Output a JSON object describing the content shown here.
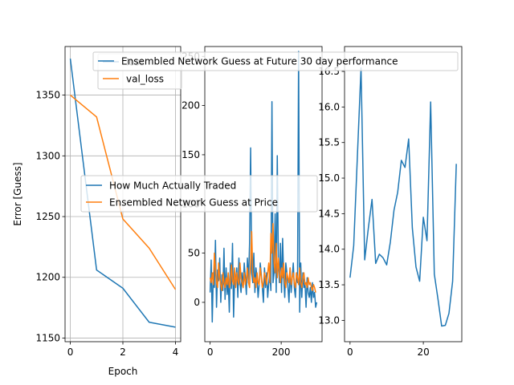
{
  "colors": {
    "blue": "#1f77b4",
    "orange": "#ff7f0e",
    "grid": "#b0b0b0"
  },
  "chart_data": [
    {
      "type": "line",
      "xlabel": "Epoch",
      "ylabel": "Error [Guess]",
      "grid": true,
      "xlim": [
        -0.2,
        4.2
      ],
      "ylim": [
        1147,
        1390
      ],
      "xticks": [
        0,
        2,
        4
      ],
      "yticks": [
        1150,
        1200,
        1250,
        1300,
        1350
      ],
      "legend": {
        "placement": "upper-right",
        "entries": [
          "loss",
          "val_loss"
        ]
      },
      "series": [
        {
          "name": "loss",
          "color": "blue",
          "x": [
            0,
            1,
            2,
            3,
            4
          ],
          "y": [
            1380,
            1206,
            1191,
            1163,
            1159
          ]
        },
        {
          "name": "val_loss",
          "color": "orange",
          "x": [
            0,
            1,
            2,
            3,
            4
          ],
          "y": [
            1350,
            1332,
            1248,
            1224,
            1190
          ]
        }
      ]
    },
    {
      "type": "line",
      "grid": false,
      "xlim": [
        -15,
        315
      ],
      "ylim": [
        -40,
        260
      ],
      "xticks": [
        0,
        200
      ],
      "yticks": [
        0,
        50,
        100,
        150,
        200,
        250
      ],
      "legend": {
        "placement": "center",
        "entries": [
          "How Much Actually Traded",
          "Ensembled Network Guess at Price"
        ]
      },
      "series": [
        {
          "name": "How Much Actually Traded",
          "color": "blue",
          "x_step": 3,
          "x_start": 0,
          "y": [
            10,
            43,
            -20,
            30,
            15,
            63,
            -5,
            33,
            22,
            45,
            0,
            28,
            12,
            55,
            3,
            35,
            8,
            22,
            -10,
            40,
            14,
            60,
            -15,
            25,
            18,
            35,
            5,
            45,
            20,
            10,
            30,
            15,
            40,
            25,
            8,
            45,
            20,
            60,
            157,
            30,
            20,
            50,
            10,
            35,
            25,
            5,
            18,
            40,
            28,
            15,
            0,
            35,
            15,
            30,
            5,
            20,
            30,
            12,
            204,
            20,
            30,
            90,
            10,
            149,
            45,
            20,
            60,
            10,
            65,
            25,
            5,
            40,
            30,
            15,
            0,
            35,
            10,
            25,
            40,
            15,
            5,
            30,
            20,
            255,
            -10,
            40,
            5,
            30,
            15,
            20,
            -5,
            25,
            10,
            5,
            15,
            0,
            20,
            5,
            10,
            -5,
            0
          ]
        },
        {
          "name": "Ensembled Network Guess at Price",
          "color": "orange",
          "x_step": 3,
          "x_start": 0,
          "y": [
            25,
            20,
            30,
            18,
            50,
            35,
            20,
            15,
            40,
            25,
            18,
            12,
            30,
            20,
            15,
            25,
            18,
            30,
            15,
            20,
            38,
            22,
            18,
            35,
            15,
            30,
            22,
            18,
            40,
            25,
            20,
            15,
            30,
            18,
            25,
            35,
            20,
            15,
            40,
            72,
            30,
            20,
            25,
            15,
            30,
            20,
            18,
            35,
            25,
            15,
            20,
            30,
            25,
            18,
            30,
            40,
            20,
            70,
            50,
            80,
            40,
            30,
            60,
            25,
            45,
            30,
            20,
            35,
            25,
            40,
            20,
            15,
            30,
            25,
            20,
            35,
            18,
            25,
            30,
            20,
            15,
            30,
            25,
            18,
            35,
            20,
            15,
            25,
            30,
            18,
            20,
            15,
            25,
            18,
            20,
            15,
            12,
            18,
            15,
            10
          ]
        }
      ]
    },
    {
      "type": "line",
      "grid": false,
      "xlim": [
        -1.5,
        30.5
      ],
      "ylim": [
        12.7,
        16.85
      ],
      "xticks": [
        0,
        20
      ],
      "yticks": [
        13.0,
        13.5,
        14.0,
        14.5,
        15.0,
        15.5,
        16.0,
        16.5
      ],
      "legend": {
        "placement": "upper-right",
        "entries": [
          "Ensembled Network Guess at Future 30 day performance"
        ]
      },
      "series": [
        {
          "name": "Ensembled Network Guess at Future 30 day performance",
          "color": "blue",
          "x": [
            0,
            1,
            2,
            3,
            4,
            5,
            6,
            7,
            8,
            9,
            10,
            11,
            12,
            13,
            14,
            15,
            16,
            17,
            18,
            19,
            20,
            21,
            22,
            23,
            24,
            25,
            26,
            27,
            28,
            29
          ],
          "y": [
            13.6,
            14.05,
            15.3,
            16.55,
            13.85,
            14.3,
            14.7,
            13.8,
            13.93,
            13.88,
            13.78,
            14.1,
            14.55,
            14.8,
            15.25,
            15.15,
            15.55,
            14.3,
            13.75,
            13.55,
            14.45,
            14.12,
            16.07,
            13.65,
            13.3,
            12.92,
            12.93,
            13.1,
            13.55,
            15.2
          ]
        }
      ]
    }
  ]
}
